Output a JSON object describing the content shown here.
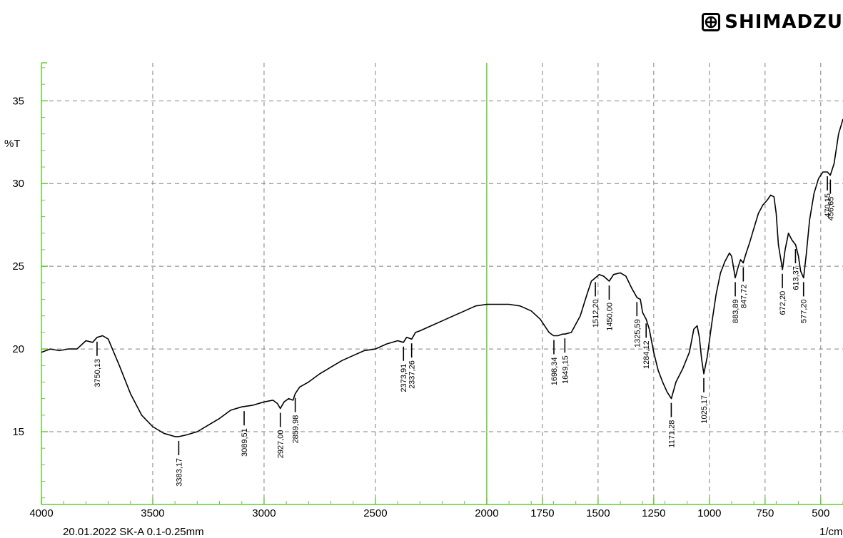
{
  "header": {
    "logo_text": "SHIMADZU"
  },
  "footer": {
    "sample": "20.01.2022 SK-A 0.1-0.25mm",
    "unit": "1/cm"
  },
  "colors": {
    "frame": "#66cc33",
    "grid": "#808080",
    "line": "#000000"
  },
  "chart_data": {
    "type": "line",
    "title": "",
    "xlabel": "1/cm",
    "ylabel": "%T",
    "xlim": [
      4000,
      400
    ],
    "ylim": [
      10.6,
      37.3
    ],
    "x_reversed": true,
    "grid": true,
    "x_ticks": [
      4000,
      3500,
      3000,
      2500,
      2000,
      1750,
      1500,
      1250,
      1000,
      750,
      500
    ],
    "y_ticks": [
      15,
      20,
      25,
      30,
      35
    ],
    "series": [
      {
        "values": [
          [
            4000,
            19.8
          ],
          [
            3960,
            20.0
          ],
          [
            3920,
            19.9
          ],
          [
            3880,
            20.0
          ],
          [
            3840,
            20.0
          ],
          [
            3800,
            20.5
          ],
          [
            3770,
            20.4
          ],
          [
            3750,
            20.7
          ],
          [
            3725,
            20.8
          ],
          [
            3700,
            20.6
          ],
          [
            3650,
            19.0
          ],
          [
            3600,
            17.3
          ],
          [
            3550,
            16.0
          ],
          [
            3500,
            15.3
          ],
          [
            3450,
            14.9
          ],
          [
            3400,
            14.7
          ],
          [
            3383,
            14.7
          ],
          [
            3350,
            14.8
          ],
          [
            3300,
            15.0
          ],
          [
            3250,
            15.4
          ],
          [
            3200,
            15.8
          ],
          [
            3150,
            16.3
          ],
          [
            3100,
            16.5
          ],
          [
            3050,
            16.6
          ],
          [
            3000,
            16.8
          ],
          [
            2960,
            16.9
          ],
          [
            2940,
            16.7
          ],
          [
            2927,
            16.4
          ],
          [
            2910,
            16.8
          ],
          [
            2890,
            17.0
          ],
          [
            2870,
            16.9
          ],
          [
            2860,
            17.3
          ],
          [
            2840,
            17.7
          ],
          [
            2800,
            18.0
          ],
          [
            2750,
            18.5
          ],
          [
            2700,
            18.9
          ],
          [
            2650,
            19.3
          ],
          [
            2600,
            19.6
          ],
          [
            2550,
            19.9
          ],
          [
            2500,
            20.0
          ],
          [
            2450,
            20.3
          ],
          [
            2400,
            20.5
          ],
          [
            2374,
            20.4
          ],
          [
            2360,
            20.7
          ],
          [
            2337,
            20.6
          ],
          [
            2320,
            21.0
          ],
          [
            2300,
            21.1
          ],
          [
            2250,
            21.4
          ],
          [
            2200,
            21.7
          ],
          [
            2150,
            22.0
          ],
          [
            2100,
            22.3
          ],
          [
            2050,
            22.6
          ],
          [
            2000,
            22.7
          ],
          [
            1950,
            22.7
          ],
          [
            1900,
            22.7
          ],
          [
            1850,
            22.6
          ],
          [
            1800,
            22.3
          ],
          [
            1760,
            21.8
          ],
          [
            1740,
            21.4
          ],
          [
            1720,
            21.0
          ],
          [
            1700,
            20.8
          ],
          [
            1680,
            20.8
          ],
          [
            1660,
            20.9
          ],
          [
            1649,
            20.9
          ],
          [
            1620,
            21.0
          ],
          [
            1580,
            22.0
          ],
          [
            1550,
            23.3
          ],
          [
            1530,
            24.1
          ],
          [
            1512,
            24.3
          ],
          [
            1495,
            24.5
          ],
          [
            1475,
            24.4
          ],
          [
            1450,
            24.1
          ],
          [
            1430,
            24.5
          ],
          [
            1400,
            24.6
          ],
          [
            1375,
            24.4
          ],
          [
            1350,
            23.7
          ],
          [
            1325,
            23.1
          ],
          [
            1310,
            23.0
          ],
          [
            1300,
            22.2
          ],
          [
            1284,
            21.8
          ],
          [
            1270,
            21.2
          ],
          [
            1250,
            19.8
          ],
          [
            1230,
            18.7
          ],
          [
            1210,
            18.0
          ],
          [
            1190,
            17.4
          ],
          [
            1171,
            17.0
          ],
          [
            1150,
            18.0
          ],
          [
            1120,
            18.8
          ],
          [
            1090,
            19.8
          ],
          [
            1070,
            21.2
          ],
          [
            1055,
            21.4
          ],
          [
            1045,
            20.7
          ],
          [
            1035,
            19.4
          ],
          [
            1025,
            18.5
          ],
          [
            1010,
            19.5
          ],
          [
            990,
            21.5
          ],
          [
            970,
            23.3
          ],
          [
            950,
            24.6
          ],
          [
            930,
            25.3
          ],
          [
            910,
            25.8
          ],
          [
            900,
            25.6
          ],
          [
            890,
            24.8
          ],
          [
            884,
            24.3
          ],
          [
            870,
            25.0
          ],
          [
            860,
            25.4
          ],
          [
            848,
            25.2
          ],
          [
            835,
            25.8
          ],
          [
            820,
            26.4
          ],
          [
            800,
            27.3
          ],
          [
            780,
            28.2
          ],
          [
            760,
            28.7
          ],
          [
            740,
            29.0
          ],
          [
            725,
            29.3
          ],
          [
            710,
            29.2
          ],
          [
            700,
            28.2
          ],
          [
            690,
            26.3
          ],
          [
            672,
            24.8
          ],
          [
            660,
            26.0
          ],
          [
            645,
            27.0
          ],
          [
            630,
            26.6
          ],
          [
            613,
            26.3
          ],
          [
            600,
            25.6
          ],
          [
            590,
            24.7
          ],
          [
            577,
            24.3
          ],
          [
            565,
            25.7
          ],
          [
            550,
            27.8
          ],
          [
            530,
            29.4
          ],
          [
            510,
            30.3
          ],
          [
            490,
            30.7
          ],
          [
            470,
            30.7
          ],
          [
            457,
            30.5
          ],
          [
            440,
            31.2
          ],
          [
            420,
            33.0
          ],
          [
            400,
            33.9
          ]
        ]
      }
    ],
    "peaks": [
      {
        "x": 3750.13,
        "label": "3750,13",
        "y": 20.7,
        "side": "below"
      },
      {
        "x": 3383.17,
        "label": "3383,17",
        "y": 14.7,
        "side": "below"
      },
      {
        "x": 3089.51,
        "label": "3089,51",
        "y": 16.5,
        "side": "below"
      },
      {
        "x": 2927.0,
        "label": "2927,00",
        "y": 16.4,
        "side": "below"
      },
      {
        "x": 2859.98,
        "label": "2859,98",
        "y": 17.3,
        "side": "below"
      },
      {
        "x": 2373.91,
        "label": "2373,91",
        "y": 20.4,
        "side": "below"
      },
      {
        "x": 2337.26,
        "label": "2337,26",
        "y": 20.6,
        "side": "below"
      },
      {
        "x": 1698.34,
        "label": "1698,34",
        "y": 20.8,
        "side": "below"
      },
      {
        "x": 1649.15,
        "label": "1649,15",
        "y": 20.9,
        "side": "below"
      },
      {
        "x": 1512.2,
        "label": "1512,20",
        "y": 24.3,
        "side": "below"
      },
      {
        "x": 1450.0,
        "label": "1450,00",
        "y": 24.1,
        "side": "below"
      },
      {
        "x": 1325.59,
        "label": "1325,59",
        "y": 23.1,
        "side": "below"
      },
      {
        "x": 1284.12,
        "label": "1284,12",
        "y": 21.8,
        "side": "below"
      },
      {
        "x": 1171.28,
        "label": "1171,28",
        "y": 17.0,
        "side": "below"
      },
      {
        "x": 1025.17,
        "label": "1025,17",
        "y": 18.5,
        "side": "below"
      },
      {
        "x": 883.89,
        "label": "883,89",
        "y": 24.3,
        "side": "below"
      },
      {
        "x": 847.72,
        "label": "847,72",
        "y": 25.2,
        "side": "below"
      },
      {
        "x": 672.2,
        "label": "672,20",
        "y": 24.8,
        "side": "below"
      },
      {
        "x": 613.37,
        "label": "613,37",
        "y": 26.3,
        "side": "below"
      },
      {
        "x": 577.2,
        "label": "577,20",
        "y": 24.3,
        "side": "below"
      },
      {
        "x": 470.15,
        "label": "470,15",
        "y": 30.7,
        "side": "below"
      },
      {
        "x": 456.65,
        "label": "456,65",
        "y": 30.5,
        "side": "below"
      }
    ]
  }
}
